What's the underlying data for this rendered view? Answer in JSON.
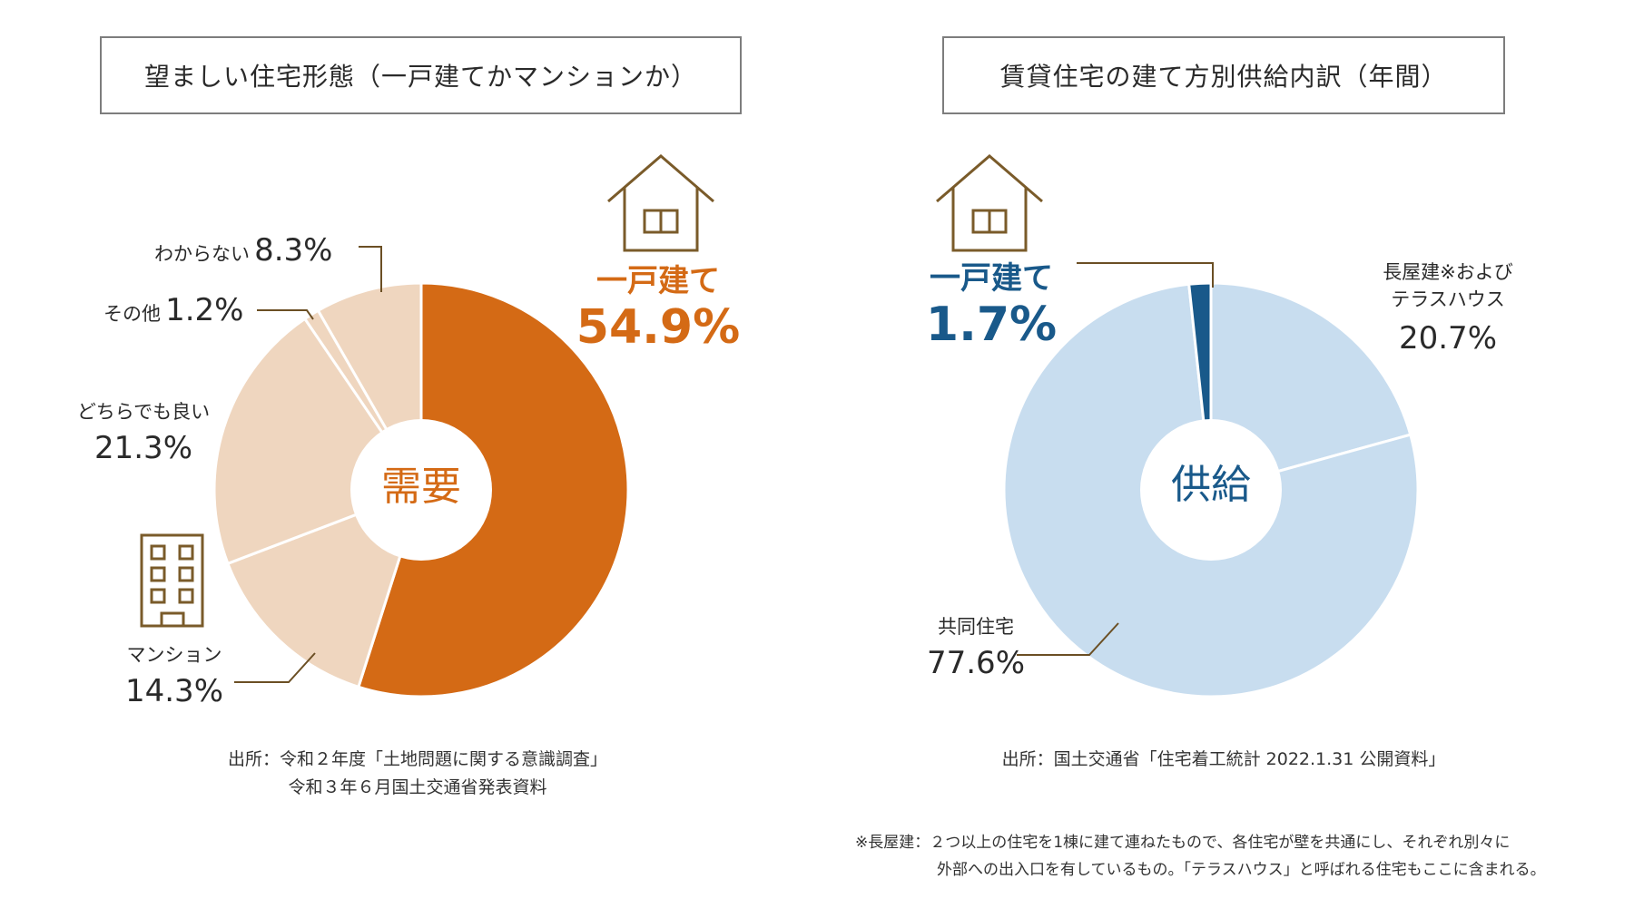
{
  "colors": {
    "orange": "#d46a15",
    "orange_light": "#efd6bf",
    "blue": "#19598a",
    "blue_light": "#c8ddef",
    "line_brown": "#6b4f24",
    "icon_brown": "#7a5b2a"
  },
  "chart_data": [
    {
      "type": "pie",
      "title": "望ましい住宅形態（一戸建てかマンションか）",
      "center_label": "需要",
      "slices": [
        {
          "name": "一戸建て",
          "value": 54.9,
          "pct_label": "54.9%",
          "color": "#d46a15"
        },
        {
          "name": "マンション",
          "value": 14.3,
          "pct_label": "14.3%",
          "color": "#efd6bf"
        },
        {
          "name": "どちらでも良い",
          "value": 21.3,
          "pct_label": "21.3%",
          "color": "#efd6bf"
        },
        {
          "name": "その他",
          "value": 1.2,
          "pct_label": "1.2%",
          "color": "#efd6bf"
        },
        {
          "name": "わからない",
          "value": 8.3,
          "pct_label": "8.3%",
          "color": "#efd6bf"
        }
      ],
      "source_lines": [
        "出所：令和２年度「土地問題に関する意識調査」",
        "令和３年６月国土交通省発表資料"
      ]
    },
    {
      "type": "pie",
      "title": "賃貸住宅の建て方別供給内訳（年間）",
      "center_label": "供給",
      "slices": [
        {
          "name": "長屋建※および\nテラスハウス",
          "value": 20.7,
          "pct_label": "20.7%",
          "color": "#c8ddef"
        },
        {
          "name": "共同住宅",
          "value": 77.6,
          "pct_label": "77.6%",
          "color": "#c8ddef"
        },
        {
          "name": "一戸建て",
          "value": 1.7,
          "pct_label": "1.7%",
          "color": "#19598a"
        }
      ],
      "source_lines": [
        "出所：国土交通省「住宅着工統計 2022.1.31 公開資料」"
      ],
      "footnote_lines": [
        "※長屋建：２つ以上の住宅を1棟に建て連ねたもので、各住宅が壁を共通にし、それぞれ別々に",
        "外部への出入口を有しているもの。「テラスハウス」と呼ばれる住宅もここに含まれる。"
      ]
    }
  ],
  "icons": {
    "house": "house-icon",
    "building": "building-icon"
  }
}
